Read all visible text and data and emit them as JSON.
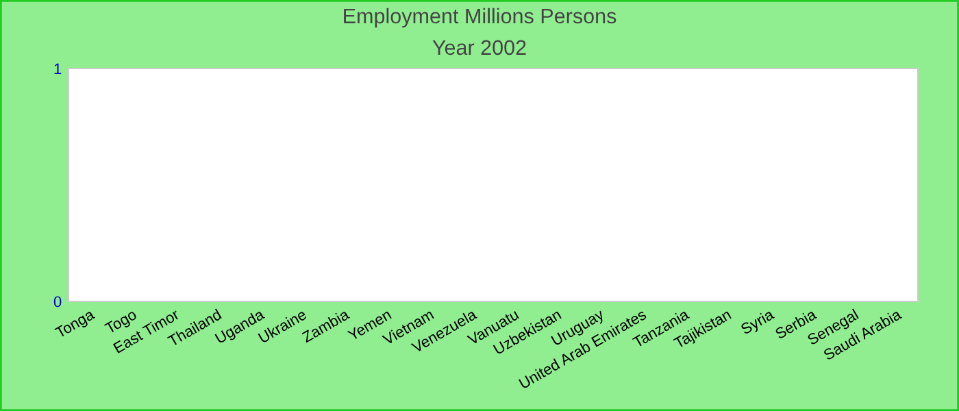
{
  "chart_data": {
    "type": "bar",
    "title": "Employment Millions Persons",
    "subtitle": "Year 2002",
    "categories": [
      "Tonga",
      "Togo",
      "East Timor",
      "Thailand",
      "Uganda",
      "Ukraine",
      "Zambia",
      "Yemen",
      "Vietnam",
      "Venezuela",
      "Vanuatu",
      "Uzbekistan",
      "Uruguay",
      "United Arab Emirates",
      "Tanzania",
      "Tajikistan",
      "Syria",
      "Serbia",
      "Senegal",
      "Saudi Arabia"
    ],
    "values": [
      0,
      0,
      0,
      0,
      0,
      0,
      0,
      0,
      0,
      0,
      0,
      0,
      0,
      0,
      0,
      0,
      0,
      0,
      0,
      0
    ],
    "ylim": [
      0,
      1
    ],
    "yticks": [
      0,
      1
    ],
    "grid": false
  }
}
